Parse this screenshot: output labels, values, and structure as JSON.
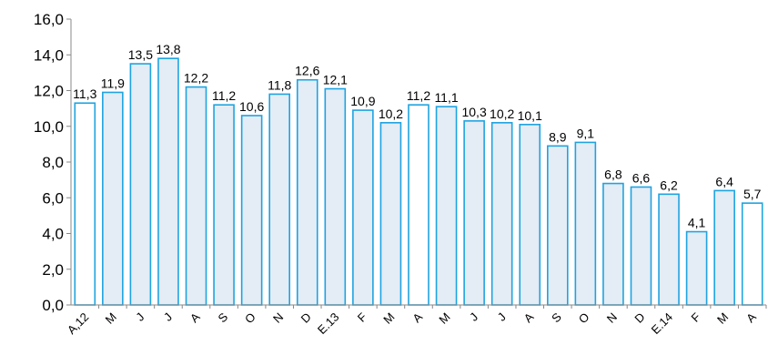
{
  "chart_data": {
    "type": "bar",
    "categories": [
      "A,12",
      "M",
      "J",
      "J",
      "A",
      "S",
      "O",
      "N",
      "D",
      "E.13",
      "F",
      "M",
      "A",
      "M",
      "J",
      "J",
      "A",
      "S",
      "O",
      "N",
      "D",
      "E.14",
      "F",
      "M",
      "A"
    ],
    "values": [
      11.3,
      11.9,
      13.5,
      13.8,
      12.2,
      11.2,
      10.6,
      11.8,
      12.6,
      12.1,
      10.9,
      10.2,
      11.2,
      11.1,
      10.3,
      10.2,
      10.1,
      8.9,
      9.1,
      6.8,
      6.6,
      6.2,
      4.1,
      6.4,
      5.7
    ],
    "value_labels": [
      "11,3",
      "11,9",
      "13,5",
      "13,8",
      "12,2",
      "11,2",
      "10,6",
      "11,8",
      "12,6",
      "12,1",
      "10,9",
      "10,2",
      "11,2",
      "11,1",
      "10,3",
      "10,2",
      "10,1",
      "8,9",
      "9,1",
      "6,8",
      "6,6",
      "6,2",
      "4,1",
      "6,4",
      "5,7"
    ],
    "highlight": [
      false,
      true,
      true,
      true,
      true,
      true,
      true,
      true,
      true,
      true,
      true,
      true,
      false,
      true,
      true,
      true,
      true,
      true,
      true,
      true,
      true,
      true,
      true,
      true,
      false
    ],
    "yticks": [
      "0,0",
      "2,0",
      "4,0",
      "6,0",
      "8,0",
      "10,0",
      "12,0",
      "14,0",
      "16,0"
    ],
    "ylim": [
      0,
      16
    ],
    "grid": false,
    "colors": {
      "bar_stroke": "#1FA3E0",
      "bar_fill": "#E4ECF5",
      "bar_fill_plain": "#FFFFFF",
      "axis": "#888888"
    }
  }
}
